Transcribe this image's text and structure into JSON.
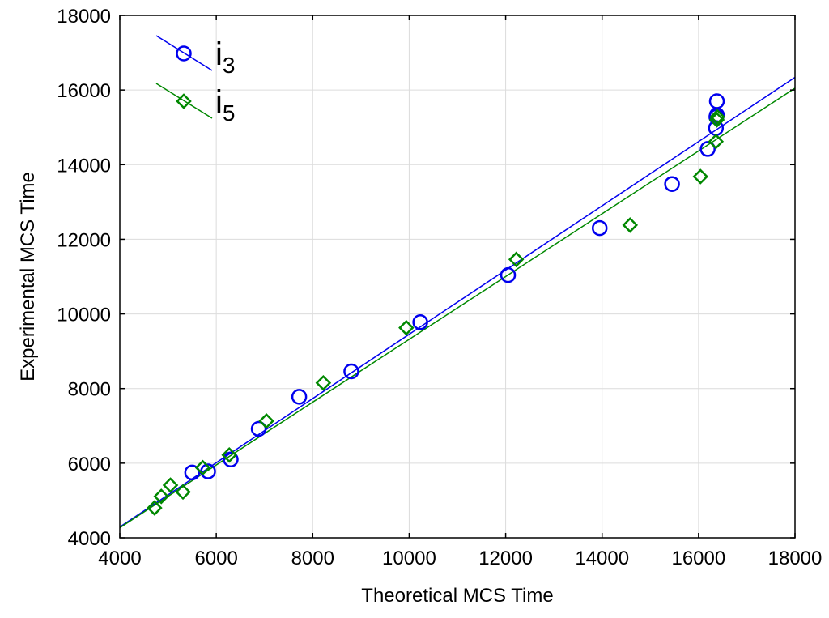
{
  "chart_data": {
    "type": "scatter",
    "xlabel": "Theoretical MCS Time",
    "ylabel": "Experimental MCS Time",
    "xlim": [
      4000,
      18000
    ],
    "ylim": [
      4000,
      18000
    ],
    "xticks": [
      4000,
      6000,
      8000,
      10000,
      12000,
      14000,
      16000,
      18000
    ],
    "yticks": [
      4000,
      6000,
      8000,
      10000,
      12000,
      14000,
      16000,
      18000
    ],
    "grid": true,
    "legend_position": "top-left",
    "series": [
      {
        "name": "i",
        "subscript": "3",
        "marker": "circle",
        "color": "#0000ee",
        "points": [
          [
            5500,
            5750
          ],
          [
            5830,
            5780
          ],
          [
            6300,
            6100
          ],
          [
            6880,
            6920
          ],
          [
            7720,
            7780
          ],
          [
            8800,
            8460
          ],
          [
            10230,
            9780
          ],
          [
            12050,
            11040
          ],
          [
            13950,
            12300
          ],
          [
            15450,
            13480
          ],
          [
            16190,
            14420
          ],
          [
            16360,
            14980
          ],
          [
            16370,
            15280
          ],
          [
            16380,
            15330
          ],
          [
            16380,
            15700
          ]
        ],
        "fit": [
          [
            4000,
            4290
          ],
          [
            18000,
            16340
          ]
        ]
      },
      {
        "name": "i",
        "subscript": "5",
        "marker": "diamond",
        "color": "#008800",
        "points": [
          [
            4720,
            4800
          ],
          [
            4860,
            5110
          ],
          [
            5050,
            5410
          ],
          [
            5310,
            5230
          ],
          [
            5720,
            5880
          ],
          [
            6270,
            6220
          ],
          [
            7040,
            7130
          ],
          [
            8220,
            8150
          ],
          [
            9940,
            9630
          ],
          [
            12220,
            11460
          ],
          [
            14580,
            12380
          ],
          [
            16040,
            13680
          ],
          [
            16360,
            14620
          ],
          [
            16380,
            15200
          ],
          [
            16390,
            15280
          ]
        ],
        "fit": [
          [
            4000,
            4270
          ],
          [
            18000,
            16050
          ]
        ]
      }
    ]
  }
}
